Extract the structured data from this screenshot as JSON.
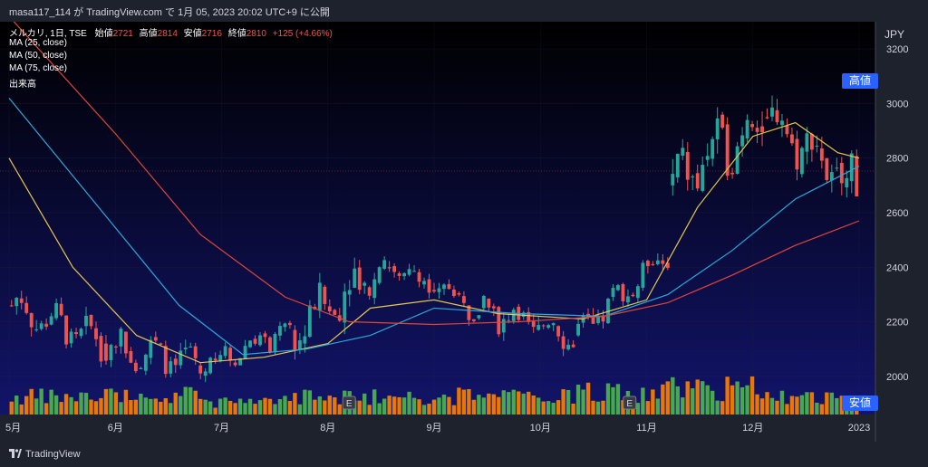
{
  "header": {
    "publish_text": "masa117_114 が TradingView.com で 1月 05, 2023 20:02 UTC+9 に公開"
  },
  "legend": {
    "symbol": "メルカリ, 1日, TSE",
    "open_label": "始値",
    "open": "2721",
    "high_label": "高値",
    "high": "2814",
    "low_label": "安値",
    "low": "2716",
    "close_label": "終値",
    "close": "2810",
    "change": "+125 (+4.66%)",
    "ma_lines": [
      "MA (25, close)",
      "MA (50, close)",
      "MA (75, close)"
    ],
    "volume_label": "出来高"
  },
  "axis": {
    "currency": "JPY",
    "high_tag": "高値",
    "low_tag": "安値"
  },
  "footer": {
    "brand": "TradingView"
  },
  "colors": {
    "up": "#26a69a",
    "down": "#ef5350",
    "vol_up": "#4caf50",
    "vol_down": "#f57c00",
    "ma25": "#e5c84a",
    "ma50": "#2aa8d8",
    "ma75": "#e0453a",
    "bg_top": "#000000",
    "bg_bottom": "#12146a"
  },
  "chart_data": {
    "type": "candlestick",
    "ylim": [
      1860,
      3300
    ],
    "y_ticks": [
      2000,
      2200,
      2400,
      2600,
      2800,
      3000,
      3200
    ],
    "x_ticks": [
      {
        "label": "5月",
        "t": 0.0
      },
      {
        "label": "6月",
        "t": 0.25
      },
      {
        "label": "7月",
        "t": 0.5
      },
      {
        "label": "8月",
        "t": 0.75
      },
      {
        "label": "9月",
        "t": 1.0
      },
      {
        "label": "10月",
        "t": 1.25
      },
      {
        "label": "11月",
        "t": 1.5
      },
      {
        "label": "12月",
        "t": 1.75
      },
      {
        "label": "2023",
        "t": 2.0
      }
    ],
    "segments": [
      {
        "x0_label": "5月",
        "x1_label": "6月",
        "y0": 2260,
        "y1": 2120,
        "amp": 90,
        "vol": 0.3
      },
      {
        "x0_label": "6月",
        "x1_label": "7月",
        "y0": 2120,
        "y1": 2040,
        "amp": 80,
        "vol": 0.32
      },
      {
        "x0_label": "7月",
        "x1_label": "8月",
        "y0": 2040,
        "y1": 2170,
        "amp": 60,
        "vol": 0.22
      },
      {
        "x0_label": "8月",
        "x1_label": "8月",
        "y0": 2170,
        "y1": 2420,
        "amp": 110,
        "vol": 0.3
      },
      {
        "x0_label": "9月",
        "x1_label": "9月",
        "y0": 2400,
        "y1": 2250,
        "amp": 70,
        "vol": 0.32
      },
      {
        "x0_label": "10月",
        "x1_label": "10月",
        "y0": 2250,
        "y1": 2150,
        "amp": 80,
        "vol": 0.3
      },
      {
        "x0_label": "10月",
        "x1_label": "11月",
        "y0": 2150,
        "y1": 2460,
        "amp": 70,
        "vol": 0.4
      },
      {
        "x0_label": "11月",
        "x1_label": "12月",
        "y0": 2700,
        "y1": 2950,
        "amp": 140,
        "vol": 0.45
      },
      {
        "x0_label": "12月",
        "x1_label": "2023",
        "y0": 2950,
        "y1": 2700,
        "amp": 120,
        "vol": 0.28
      }
    ],
    "moving_averages": [
      {
        "name": "MA (25, close)",
        "points": [
          [
            0.0,
            2800
          ],
          [
            0.15,
            2400
          ],
          [
            0.3,
            2150
          ],
          [
            0.45,
            2050
          ],
          [
            0.6,
            2070
          ],
          [
            0.75,
            2120
          ],
          [
            0.85,
            2250
          ],
          [
            1.0,
            2280
          ],
          [
            1.15,
            2230
          ],
          [
            1.35,
            2210
          ],
          [
            1.5,
            2280
          ],
          [
            1.62,
            2620
          ],
          [
            1.75,
            2880
          ],
          [
            1.85,
            2930
          ],
          [
            1.95,
            2820
          ],
          [
            2.0,
            2800
          ]
        ]
      },
      {
        "name": "MA (50, close)",
        "points": [
          [
            0.0,
            3020
          ],
          [
            0.2,
            2640
          ],
          [
            0.4,
            2260
          ],
          [
            0.55,
            2080
          ],
          [
            0.7,
            2100
          ],
          [
            0.85,
            2150
          ],
          [
            1.0,
            2250
          ],
          [
            1.2,
            2230
          ],
          [
            1.4,
            2220
          ],
          [
            1.55,
            2300
          ],
          [
            1.7,
            2460
          ],
          [
            1.85,
            2650
          ],
          [
            2.0,
            2770
          ]
        ]
      },
      {
        "name": "MA (75, close)",
        "points": [
          [
            0.0,
            3320
          ],
          [
            0.25,
            2890
          ],
          [
            0.45,
            2520
          ],
          [
            0.65,
            2290
          ],
          [
            0.8,
            2200
          ],
          [
            1.0,
            2190
          ],
          [
            1.2,
            2200
          ],
          [
            1.4,
            2220
          ],
          [
            1.55,
            2270
          ],
          [
            1.7,
            2370
          ],
          [
            1.85,
            2480
          ],
          [
            2.0,
            2570
          ]
        ]
      }
    ],
    "earnings_markers": [
      0.8,
      1.46
    ]
  }
}
